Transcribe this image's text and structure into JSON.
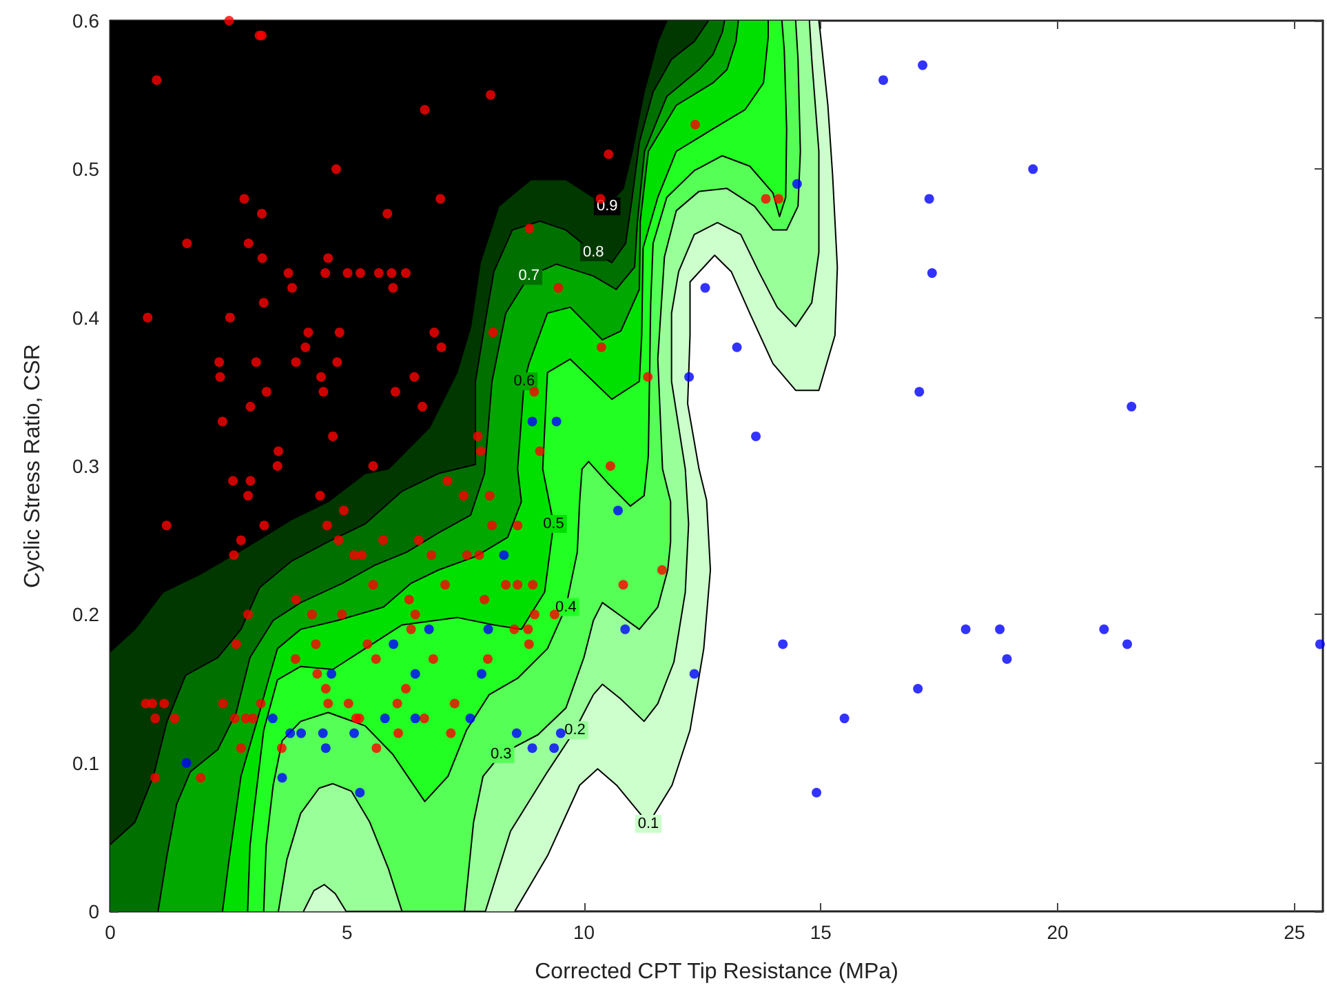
{
  "chart_data": {
    "type": "scatter",
    "xlabel": "Corrected CPT Tip Resistance (MPa)",
    "ylabel": "Cyclic Stress Ratio, CSR",
    "xlim": [
      0,
      25.6
    ],
    "xticks": [
      0,
      5,
      10,
      15,
      20,
      25
    ],
    "ylim": [
      0,
      0.6
    ],
    "yticks": [
      0,
      0.1,
      0.2,
      0.3,
      0.4,
      0.5,
      0.6
    ],
    "series": [
      {
        "type": "area",
        "name": "0.1",
        "color": "#ccffcc",
        "x": [
          8.54,
          9.24,
          9.91,
          10.29,
          10.69,
          11.36,
          11.86,
          12.24,
          12.53,
          12.67,
          12.59,
          12.43,
          12.19,
          12.24,
          12.24,
          12.76,
          13.11,
          13.5,
          13.99,
          14.47,
          14.96,
          15.3,
          15.35,
          15.25,
          15.15,
          15.01,
          14.96,
          0,
          0
        ],
        "values": [
          0,
          0.038,
          0.085,
          0.096,
          0.085,
          0.059,
          0.085,
          0.122,
          0.177,
          0.23,
          0.277,
          0.298,
          0.342,
          0.388,
          0.424,
          0.442,
          0.431,
          0.403,
          0.369,
          0.351,
          0.351,
          0.388,
          0.434,
          0.496,
          0.543,
          0.586,
          0.6,
          0.6,
          0
        ]
      },
      {
        "type": "area",
        "name": "0.2",
        "color": "#99ff99",
        "x": [
          4.08,
          4.3,
          4.52,
          4.75,
          4.98,
          7.92,
          8.45,
          9.23,
          9.81,
          10.2,
          10.39,
          10.78,
          11.27,
          11.56,
          11.9,
          12.14,
          12.21,
          12.14,
          11.85,
          11.85,
          12.0,
          12.33,
          12.82,
          13.31,
          13.69,
          14.08,
          14.47,
          14.81,
          14.96,
          14.96,
          14.81,
          14.76,
          0,
          0
        ],
        "values": [
          0,
          0.014,
          0.018,
          0.012,
          0,
          0,
          0.054,
          0.094,
          0.122,
          0.146,
          0.153,
          0.143,
          0.128,
          0.14,
          0.168,
          0.215,
          0.261,
          0.298,
          0.357,
          0.403,
          0.431,
          0.456,
          0.464,
          0.456,
          0.431,
          0.407,
          0.394,
          0.41,
          0.444,
          0.512,
          0.574,
          0.6,
          0.6,
          0
        ]
      },
      {
        "type": "area",
        "name": "0.3",
        "color": "#55ff55",
        "x": [
          3.55,
          3.73,
          4.02,
          4.41,
          4.7,
          5.09,
          5.48,
          5.87,
          6.16,
          7.48,
          7.67,
          7.87,
          8.25,
          9.03,
          9.62,
          10.0,
          10.2,
          10.39,
          10.78,
          11.17,
          11.56,
          11.77,
          11.83,
          11.83,
          11.66,
          11.56,
          11.7,
          11.95,
          12.43,
          13.02,
          13.6,
          13.99,
          14.28,
          14.52,
          14.57,
          14.52,
          14.47,
          0,
          0
        ],
        "values": [
          0,
          0.035,
          0.066,
          0.083,
          0.086,
          0.081,
          0.06,
          0.029,
          0,
          0,
          0.06,
          0.091,
          0.106,
          0.119,
          0.137,
          0.171,
          0.196,
          0.208,
          0.199,
          0.19,
          0.205,
          0.23,
          0.249,
          0.276,
          0.298,
          0.372,
          0.441,
          0.472,
          0.485,
          0.487,
          0.475,
          0.459,
          0.459,
          0.475,
          0.512,
          0.574,
          0.6,
          0.6,
          0
        ]
      },
      {
        "type": "area",
        "name": "0.4",
        "color": "#22ff22",
        "x": [
          3.24,
          3.29,
          3.44,
          3.63,
          4.02,
          4.6,
          5.38,
          5.96,
          6.64,
          7.13,
          7.52,
          8.0,
          8.6,
          9.23,
          9.62,
          9.86,
          9.91,
          9.96,
          10.1,
          10.49,
          10.98,
          11.27,
          11.36,
          11.41,
          11.46,
          11.75,
          12.33,
          12.92,
          13.5,
          13.99,
          14.13,
          14.26,
          14.28,
          14.23,
          14.18,
          0,
          0
        ],
        "values": [
          0,
          0.044,
          0.085,
          0.115,
          0.128,
          0.134,
          0.125,
          0.106,
          0.074,
          0.091,
          0.122,
          0.146,
          0.157,
          0.177,
          0.205,
          0.242,
          0.276,
          0.298,
          0.303,
          0.289,
          0.273,
          0.28,
          0.307,
          0.41,
          0.45,
          0.481,
          0.499,
          0.509,
          0.502,
          0.484,
          0.468,
          0.481,
          0.527,
          0.58,
          0.6,
          0.6,
          0
        ]
      },
      {
        "type": "area",
        "name": "0.5",
        "color": "#00e000",
        "x": [
          2.9,
          2.95,
          3.05,
          3.24,
          3.53,
          4.02,
          4.7,
          5.38,
          6.16,
          7.32,
          8.1,
          8.68,
          9.17,
          9.36,
          9.13,
          9.23,
          9.71,
          10.59,
          11.17,
          11.22,
          11.25,
          11.56,
          11.95,
          12.72,
          13.4,
          13.79,
          13.89,
          13.89,
          0,
          0
        ],
        "values": [
          0,
          0.044,
          0.072,
          0.122,
          0.156,
          0.165,
          0.163,
          0.177,
          0.193,
          0.198,
          0.193,
          0.19,
          0.215,
          0.261,
          0.298,
          0.363,
          0.372,
          0.345,
          0.357,
          0.388,
          0.447,
          0.481,
          0.512,
          0.527,
          0.54,
          0.558,
          0.589,
          0.6,
          0.6,
          0
        ]
      },
      {
        "type": "area",
        "name": "0.6",
        "color": "#00a800",
        "x": [
          2.37,
          2.51,
          2.76,
          3.15,
          3.34,
          3.53,
          4.02,
          4.8,
          5.77,
          6.35,
          6.93,
          7.71,
          8.39,
          8.68,
          8.6,
          8.74,
          8.84,
          9.23,
          9.71,
          10.39,
          10.78,
          11.17,
          11.19,
          11.36,
          11.95,
          12.72,
          13.02,
          13.21,
          13.26,
          0,
          0
        ],
        "values": [
          0,
          0.035,
          0.091,
          0.134,
          0.156,
          0.177,
          0.19,
          0.196,
          0.205,
          0.221,
          0.23,
          0.239,
          0.252,
          0.276,
          0.298,
          0.357,
          0.369,
          0.403,
          0.407,
          0.385,
          0.391,
          0.419,
          0.465,
          0.512,
          0.543,
          0.558,
          0.567,
          0.586,
          0.6,
          0.6,
          0
        ]
      },
      {
        "type": "area",
        "name": "0.7",
        "color": "#007000",
        "x": [
          1.01,
          1.2,
          1.4,
          1.69,
          2.27,
          2.66,
          2.95,
          3.44,
          4.02,
          4.9,
          5.57,
          6.26,
          6.93,
          7.61,
          7.9,
          8.06,
          8.35,
          8.84,
          9.42,
          10.2,
          10.68,
          11.07,
          11.13,
          11.28,
          11.75,
          12.43,
          12.72,
          12.92,
          12.97,
          0,
          0
        ],
        "values": [
          0,
          0.038,
          0.072,
          0.094,
          0.109,
          0.134,
          0.171,
          0.196,
          0.208,
          0.221,
          0.233,
          0.242,
          0.255,
          0.267,
          0.295,
          0.357,
          0.403,
          0.428,
          0.436,
          0.428,
          0.419,
          0.434,
          0.465,
          0.512,
          0.549,
          0.567,
          0.577,
          0.592,
          0.6,
          0.6,
          0
        ]
      },
      {
        "type": "area",
        "name": "0.8",
        "color": "#003800",
        "x": [
          0,
          0.52,
          0.91,
          1.2,
          1.59,
          2.27,
          2.76,
          3.15,
          3.83,
          4.6,
          5.38,
          6.16,
          6.93,
          7.71,
          7.71,
          7.9,
          8.1,
          8.49,
          9.07,
          9.62,
          10.2,
          10.59,
          10.88,
          11.02,
          11.17,
          11.46,
          11.85,
          12.33,
          12.63,
          0
        ],
        "values": [
          0.045,
          0.06,
          0.091,
          0.128,
          0.159,
          0.171,
          0.19,
          0.218,
          0.236,
          0.249,
          0.261,
          0.283,
          0.295,
          0.301,
          0.357,
          0.394,
          0.431,
          0.459,
          0.465,
          0.459,
          0.444,
          0.437,
          0.45,
          0.481,
          0.518,
          0.552,
          0.574,
          0.586,
          0.6,
          0.6
        ]
      },
      {
        "type": "area",
        "name": "0.9",
        "color": "#000000",
        "x": [
          0,
          0.52,
          1.11,
          1.89,
          2.86,
          3.83,
          4.6,
          5.38,
          5.87,
          6.74,
          7.32,
          7.61,
          7.81,
          8.2,
          8.88,
          9.62,
          10.2,
          10.49,
          10.83,
          11.02,
          11.27,
          11.56,
          11.75,
          0
        ],
        "values": [
          0.175,
          0.19,
          0.215,
          0.227,
          0.245,
          0.264,
          0.276,
          0.295,
          0.298,
          0.326,
          0.363,
          0.394,
          0.437,
          0.475,
          0.493,
          0.493,
          0.481,
          0.475,
          0.487,
          0.512,
          0.552,
          0.586,
          0.6,
          0.6
        ]
      },
      {
        "marker": "circle",
        "color": "#ff0000",
        "x": [
          2.51,
          3.15,
          3.2,
          0.98,
          8.03,
          6.64,
          4.77,
          2.83,
          6.97,
          3.2,
          5.85,
          1.62,
          2.92,
          3.21,
          4.6,
          3.76,
          4.54,
          5.01,
          5.28,
          5.67,
          5.94,
          6.24,
          3.84,
          5.97,
          3.24,
          0.79,
          2.53,
          4.18,
          4.84,
          6.84,
          4.12,
          6.99,
          2.3,
          3.08,
          3.92,
          4.79,
          2.32,
          4.45,
          6.42,
          3.3,
          4.5,
          6.02,
          2.96,
          6.59,
          2.37,
          4.7,
          3.55,
          3.53,
          5.55,
          8.85,
          9.46,
          8.08,
          8.95,
          7.76,
          7.82,
          9.07,
          10.52,
          12.35,
          10.35,
          13.84,
          14.11,
          10.37,
          11.35,
          10.56,
          7.46,
          8.01,
          8.06,
          8.6,
          7.53,
          7.79,
          11.65,
          8.35,
          8.6,
          8.92,
          10.83,
          7.9,
          8.96,
          9.38,
          8.53,
          8.82,
          8.84,
          7.97,
          2.59,
          2.96,
          2.91,
          4.43,
          7.12,
          4.93,
          1.19,
          3.25,
          4.58,
          2.76,
          4.82,
          5.76,
          6.51,
          2.61,
          5.15,
          5.31,
          6.78,
          5.55,
          7.07,
          3.92,
          6.31,
          2.91,
          4.26,
          4.89,
          6.44,
          6.35,
          2.66,
          4.34,
          5.43,
          3.91,
          5.61,
          6.82,
          4.37,
          4.55,
          6.24,
          0.75,
          0.89,
          1.14,
          2.38,
          3.18,
          4.6,
          5.03,
          6.06,
          7.27,
          0.95,
          1.36,
          2.63,
          2.86,
          3.01,
          5.19,
          5.26,
          6.63,
          6.08,
          7.19,
          2.76,
          3.62,
          5.62,
          0.95,
          1.91
        ],
        "values": [
          0.6,
          0.59,
          0.59,
          0.56,
          0.55,
          0.54,
          0.5,
          0.48,
          0.48,
          0.47,
          0.47,
          0.45,
          0.45,
          0.44,
          0.44,
          0.43,
          0.43,
          0.43,
          0.43,
          0.43,
          0.43,
          0.43,
          0.42,
          0.42,
          0.41,
          0.4,
          0.4,
          0.39,
          0.39,
          0.39,
          0.38,
          0.38,
          0.37,
          0.37,
          0.37,
          0.37,
          0.36,
          0.36,
          0.36,
          0.35,
          0.35,
          0.35,
          0.34,
          0.34,
          0.33,
          0.32,
          0.31,
          0.3,
          0.3,
          0.46,
          0.42,
          0.39,
          0.35,
          0.32,
          0.31,
          0.31,
          0.51,
          0.53,
          0.48,
          0.48,
          0.48,
          0.38,
          0.36,
          0.3,
          0.28,
          0.28,
          0.26,
          0.26,
          0.24,
          0.24,
          0.23,
          0.22,
          0.22,
          0.22,
          0.22,
          0.21,
          0.2,
          0.2,
          0.19,
          0.19,
          0.18,
          0.17,
          0.29,
          0.29,
          0.28,
          0.28,
          0.29,
          0.27,
          0.26,
          0.26,
          0.26,
          0.25,
          0.25,
          0.25,
          0.25,
          0.24,
          0.24,
          0.24,
          0.24,
          0.22,
          0.22,
          0.21,
          0.21,
          0.2,
          0.2,
          0.2,
          0.2,
          0.19,
          0.18,
          0.18,
          0.18,
          0.17,
          0.17,
          0.17,
          0.16,
          0.15,
          0.15,
          0.14,
          0.14,
          0.14,
          0.14,
          0.14,
          0.14,
          0.14,
          0.14,
          0.14,
          0.13,
          0.13,
          0.13,
          0.13,
          0.13,
          0.13,
          0.13,
          0.13,
          0.12,
          0.12,
          0.11,
          0.11,
          0.11,
          0.09,
          0.09
        ]
      },
      {
        "marker": "circle",
        "color": "#0000ff",
        "x": [
          8.91,
          9.42,
          14.5,
          12.56,
          13.23,
          12.22,
          13.63,
          17.15,
          16.32,
          19.48,
          17.29,
          17.35,
          17.08,
          21.56,
          18.06,
          18.78,
          20.98,
          21.47,
          25.54,
          18.93,
          17.05,
          10.72,
          8.31,
          7.98,
          10.87,
          7.84,
          12.33,
          14.2,
          15.5,
          14.91,
          7.6,
          8.58,
          9.51,
          8.91,
          9.37,
          6.73,
          5.98,
          4.67,
          6.44,
          3.43,
          5.8,
          6.44,
          3.8,
          4.03,
          4.49,
          5.15,
          4.55,
          1.61,
          3.63,
          5.27
        ],
        "values": [
          0.33,
          0.33,
          0.49,
          0.42,
          0.38,
          0.36,
          0.32,
          0.57,
          0.56,
          0.5,
          0.48,
          0.43,
          0.35,
          0.34,
          0.19,
          0.19,
          0.19,
          0.18,
          0.18,
          0.17,
          0.15,
          0.27,
          0.24,
          0.19,
          0.19,
          0.16,
          0.16,
          0.18,
          0.13,
          0.08,
          0.13,
          0.12,
          0.12,
          0.11,
          0.11,
          0.19,
          0.18,
          0.16,
          0.16,
          0.13,
          0.13,
          0.13,
          0.12,
          0.12,
          0.12,
          0.12,
          0.11,
          0.1,
          0.09,
          0.08
        ]
      }
    ]
  }
}
